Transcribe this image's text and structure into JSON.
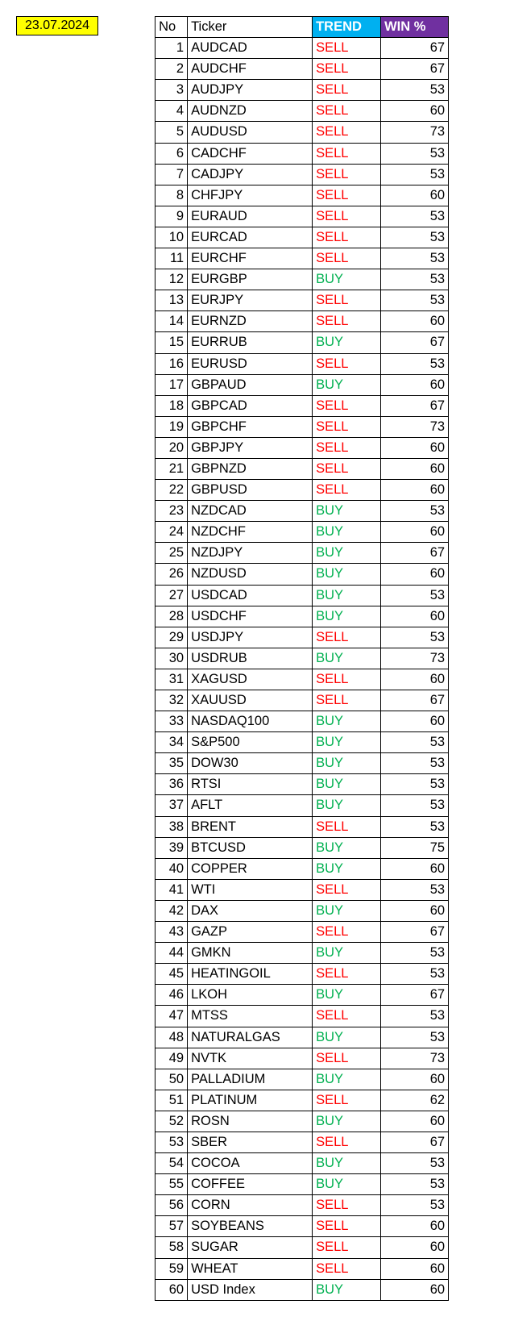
{
  "date": "23.07.2024",
  "headers": {
    "no": "No",
    "ticker": "Ticker",
    "trend": "TREND",
    "win": "WIN %"
  },
  "colors": {
    "date_bg": "#ffff00",
    "trend_header_bg": "#00b0f0",
    "win_header_bg": "#7030a0",
    "header_text": "#ffffff",
    "sell_color": "#ff0000",
    "buy_color": "#00b050",
    "border_color": "#000000",
    "background": "#ffffff"
  },
  "rows": [
    {
      "no": 1,
      "ticker": "AUDCAD",
      "trend": "SELL",
      "win": 67
    },
    {
      "no": 2,
      "ticker": "AUDCHF",
      "trend": "SELL",
      "win": 67
    },
    {
      "no": 3,
      "ticker": "AUDJPY",
      "trend": "SELL",
      "win": 53
    },
    {
      "no": 4,
      "ticker": "AUDNZD",
      "trend": "SELL",
      "win": 60
    },
    {
      "no": 5,
      "ticker": "AUDUSD",
      "trend": "SELL",
      "win": 73
    },
    {
      "no": 6,
      "ticker": "CADCHF",
      "trend": "SELL",
      "win": 53
    },
    {
      "no": 7,
      "ticker": "CADJPY",
      "trend": "SELL",
      "win": 53
    },
    {
      "no": 8,
      "ticker": "CHFJPY",
      "trend": "SELL",
      "win": 60
    },
    {
      "no": 9,
      "ticker": "EURAUD",
      "trend": "SELL",
      "win": 53
    },
    {
      "no": 10,
      "ticker": "EURCAD",
      "trend": "SELL",
      "win": 53
    },
    {
      "no": 11,
      "ticker": "EURCHF",
      "trend": "SELL",
      "win": 53
    },
    {
      "no": 12,
      "ticker": "EURGBP",
      "trend": "BUY",
      "win": 53
    },
    {
      "no": 13,
      "ticker": "EURJPY",
      "trend": "SELL",
      "win": 53
    },
    {
      "no": 14,
      "ticker": "EURNZD",
      "trend": "SELL",
      "win": 60
    },
    {
      "no": 15,
      "ticker": "EURRUB",
      "trend": "BUY",
      "win": 67
    },
    {
      "no": 16,
      "ticker": "EURUSD",
      "trend": "SELL",
      "win": 53
    },
    {
      "no": 17,
      "ticker": "GBPAUD",
      "trend": "BUY",
      "win": 60
    },
    {
      "no": 18,
      "ticker": "GBPCAD",
      "trend": "SELL",
      "win": 67
    },
    {
      "no": 19,
      "ticker": "GBPCHF",
      "trend": "SELL",
      "win": 73
    },
    {
      "no": 20,
      "ticker": "GBPJPY",
      "trend": "SELL",
      "win": 60
    },
    {
      "no": 21,
      "ticker": "GBPNZD",
      "trend": "SELL",
      "win": 60
    },
    {
      "no": 22,
      "ticker": "GBPUSD",
      "trend": "SELL",
      "win": 60
    },
    {
      "no": 23,
      "ticker": "NZDCAD",
      "trend": "BUY",
      "win": 53
    },
    {
      "no": 24,
      "ticker": "NZDCHF",
      "trend": "BUY",
      "win": 60
    },
    {
      "no": 25,
      "ticker": "NZDJPY",
      "trend": "BUY",
      "win": 67
    },
    {
      "no": 26,
      "ticker": "NZDUSD",
      "trend": "BUY",
      "win": 60
    },
    {
      "no": 27,
      "ticker": "USDCAD",
      "trend": "BUY",
      "win": 53
    },
    {
      "no": 28,
      "ticker": "USDCHF",
      "trend": "BUY",
      "win": 60
    },
    {
      "no": 29,
      "ticker": "USDJPY",
      "trend": "SELL",
      "win": 53
    },
    {
      "no": 30,
      "ticker": "USDRUB",
      "trend": "BUY",
      "win": 73
    },
    {
      "no": 31,
      "ticker": "XAGUSD",
      "trend": "SELL",
      "win": 60
    },
    {
      "no": 32,
      "ticker": "XAUUSD",
      "trend": "SELL",
      "win": 67
    },
    {
      "no": 33,
      "ticker": "NASDAQ100",
      "trend": "BUY",
      "win": 60
    },
    {
      "no": 34,
      "ticker": "S&P500",
      "trend": "BUY",
      "win": 53
    },
    {
      "no": 35,
      "ticker": "DOW30",
      "trend": "BUY",
      "win": 53
    },
    {
      "no": 36,
      "ticker": "RTSI",
      "trend": "BUY",
      "win": 53
    },
    {
      "no": 37,
      "ticker": "AFLT",
      "trend": "BUY",
      "win": 53
    },
    {
      "no": 38,
      "ticker": "BRENT",
      "trend": "SELL",
      "win": 53
    },
    {
      "no": 39,
      "ticker": "BTCUSD",
      "trend": "BUY",
      "win": 75
    },
    {
      "no": 40,
      "ticker": "COPPER",
      "trend": "BUY",
      "win": 60
    },
    {
      "no": 41,
      "ticker": "WTI",
      "trend": "SELL",
      "win": 53
    },
    {
      "no": 42,
      "ticker": "DAX",
      "trend": "BUY",
      "win": 60
    },
    {
      "no": 43,
      "ticker": "GAZP",
      "trend": "SELL",
      "win": 67
    },
    {
      "no": 44,
      "ticker": "GMKN",
      "trend": "BUY",
      "win": 53
    },
    {
      "no": 45,
      "ticker": "HEATINGOIL",
      "trend": "SELL",
      "win": 53
    },
    {
      "no": 46,
      "ticker": "LKOH",
      "trend": "BUY",
      "win": 67
    },
    {
      "no": 47,
      "ticker": "MTSS",
      "trend": "SELL",
      "win": 53
    },
    {
      "no": 48,
      "ticker": "NATURALGAS",
      "trend": "BUY",
      "win": 53
    },
    {
      "no": 49,
      "ticker": "NVTK",
      "trend": "SELL",
      "win": 73
    },
    {
      "no": 50,
      "ticker": "PALLADIUM",
      "trend": "BUY",
      "win": 60
    },
    {
      "no": 51,
      "ticker": "PLATINUM",
      "trend": "SELL",
      "win": 62
    },
    {
      "no": 52,
      "ticker": "ROSN",
      "trend": "BUY",
      "win": 60
    },
    {
      "no": 53,
      "ticker": "SBER",
      "trend": "SELL",
      "win": 67
    },
    {
      "no": 54,
      "ticker": "COCOA",
      "trend": "BUY",
      "win": 53
    },
    {
      "no": 55,
      "ticker": "COFFEE",
      "trend": "BUY",
      "win": 53
    },
    {
      "no": 56,
      "ticker": "CORN",
      "trend": "SELL",
      "win": 53
    },
    {
      "no": 57,
      "ticker": "SOYBEANS",
      "trend": "SELL",
      "win": 60
    },
    {
      "no": 58,
      "ticker": "SUGAR",
      "trend": "SELL",
      "win": 60
    },
    {
      "no": 59,
      "ticker": "WHEAT",
      "trend": "SELL",
      "win": 60
    },
    {
      "no": 60,
      "ticker": "USD Index",
      "trend": "BUY",
      "win": 60
    }
  ]
}
